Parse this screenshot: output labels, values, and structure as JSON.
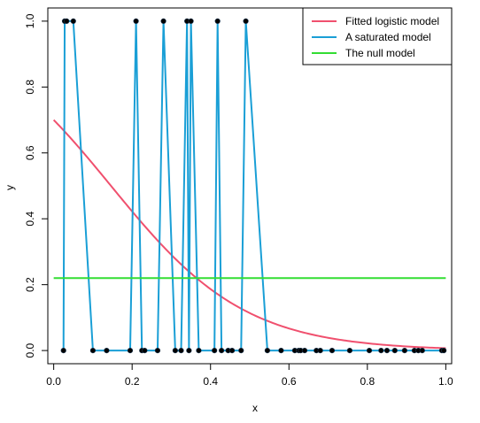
{
  "chart_data": {
    "type": "line",
    "xlabel": "x",
    "ylabel": "y",
    "xlim": [
      -0.015,
      1.015
    ],
    "ylim": [
      -0.04,
      1.04
    ],
    "x_ticks": [
      0.0,
      0.2,
      0.4,
      0.6,
      0.8,
      1.0
    ],
    "x_tick_labels": [
      "0.0",
      "0.2",
      "0.4",
      "0.6",
      "0.8",
      "1.0"
    ],
    "y_ticks": [
      0.0,
      0.2,
      0.4,
      0.6,
      0.8,
      1.0
    ],
    "y_tick_labels": [
      "0.0",
      "0.2",
      "0.4",
      "0.6",
      "0.8",
      "1.0"
    ],
    "grid": false,
    "legend": {
      "position": "top-right",
      "entries": [
        {
          "label": "Fitted logistic model",
          "color": "#f0506e"
        },
        {
          "label": "A saturated model",
          "color": "#1a9fd6"
        },
        {
          "label": "The null model",
          "color": "#33dd33"
        }
      ]
    },
    "points": {
      "x": [
        0.025,
        0.028,
        0.033,
        0.05,
        0.1,
        0.135,
        0.195,
        0.21,
        0.225,
        0.232,
        0.265,
        0.28,
        0.31,
        0.325,
        0.34,
        0.345,
        0.35,
        0.37,
        0.41,
        0.418,
        0.428,
        0.445,
        0.455,
        0.478,
        0.49,
        0.545,
        0.58,
        0.615,
        0.625,
        0.63,
        0.64,
        0.67,
        0.68,
        0.71,
        0.755,
        0.805,
        0.835,
        0.85,
        0.87,
        0.895,
        0.92,
        0.93,
        0.94,
        0.99,
        0.995
      ],
      "y": [
        0,
        1,
        1,
        1,
        0,
        0,
        0,
        1,
        0,
        0,
        0,
        1,
        0,
        0,
        1,
        0,
        1,
        0,
        0,
        1,
        0,
        0,
        0,
        0,
        1,
        0,
        0,
        0,
        0,
        0,
        0,
        0,
        0,
        0,
        0,
        0,
        0,
        0,
        0,
        0,
        0,
        0,
        0,
        0,
        0
      ],
      "color": "#000000"
    },
    "series": [
      {
        "name": "Fitted logistic model",
        "color": "#f0506e",
        "function": "logistic",
        "intercept": 0.8473,
        "slope": -5.8
      },
      {
        "name": "A saturated model",
        "color": "#1a9fd6",
        "function": "connect-points"
      },
      {
        "name": "The null model",
        "color": "#33dd33",
        "function": "constant",
        "value": 0.22
      }
    ]
  }
}
